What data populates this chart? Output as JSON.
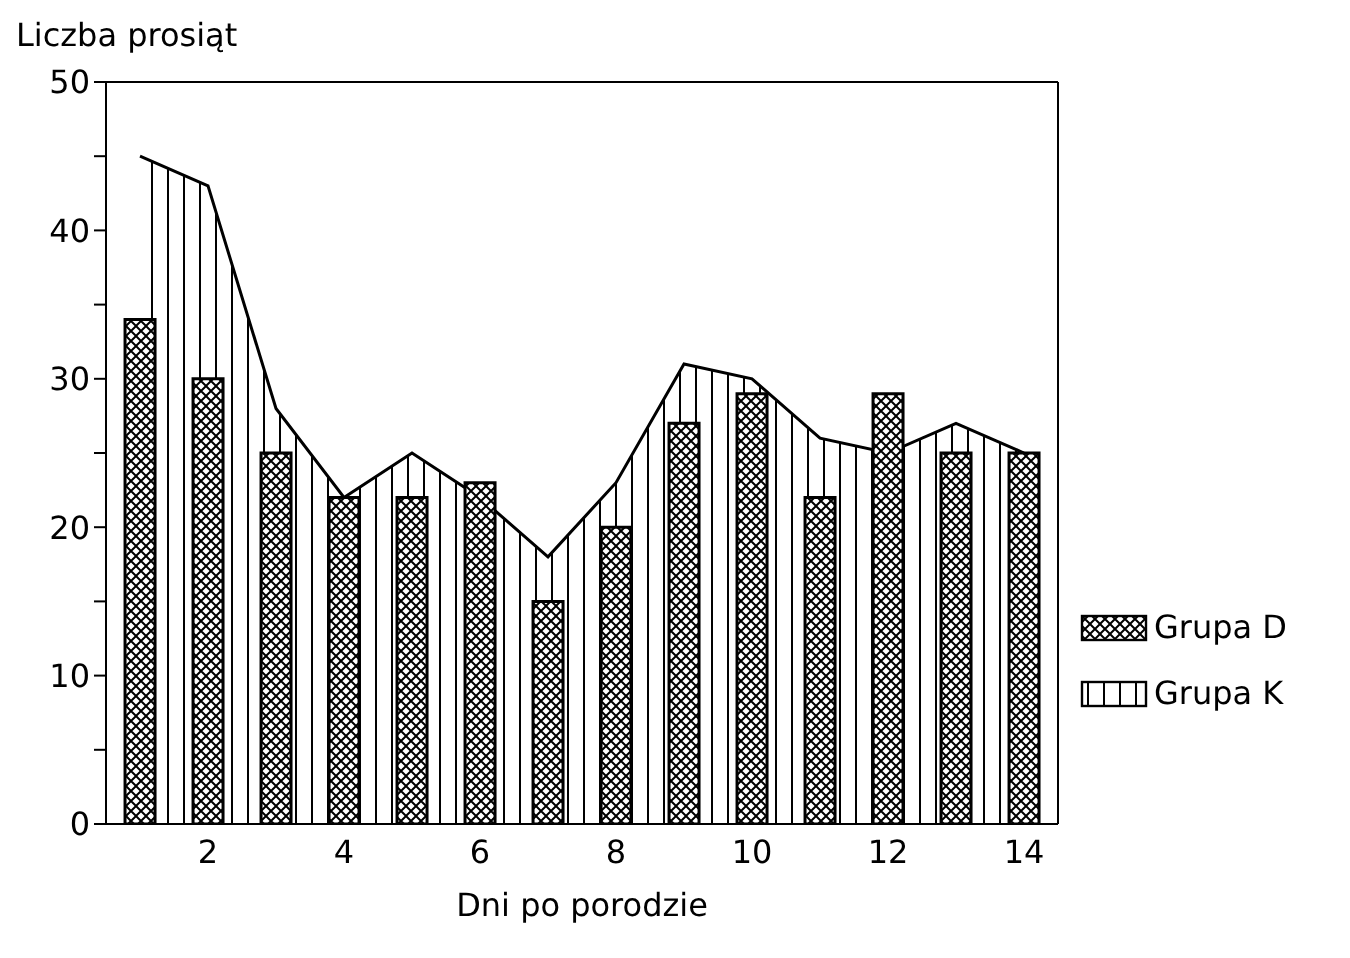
{
  "chart_data": {
    "type": "bar",
    "xlabel": "Dni po porodzie",
    "ylabel": "Liczba prosiąt",
    "categories": [
      null,
      "2",
      null,
      "4",
      null,
      "6",
      null,
      "8",
      null,
      "10",
      null,
      "12",
      null,
      "14"
    ],
    "series": [
      {
        "name": "Grupa K",
        "type": "area",
        "color": "#000000",
        "values": [
          45,
          43,
          28,
          22,
          25,
          22,
          18,
          23,
          31,
          30,
          26,
          25,
          27,
          25
        ]
      },
      {
        "name": "Grupa D",
        "color": "#000000",
        "values": [
          34,
          30,
          25,
          22,
          22,
          23,
          15,
          20,
          27,
          29,
          22,
          29,
          25,
          25
        ]
      }
    ],
    "ylim": [
      0,
      50
    ],
    "yticks": [
      0,
      {
        "value": 5,
        "label": null
      },
      10,
      {
        "value": 15,
        "label": null
      },
      20,
      {
        "value": 25,
        "label": null
      },
      30,
      {
        "value": 35,
        "label": null
      },
      40,
      {
        "value": 45,
        "label": null
      },
      50
    ],
    "legend": "bottom right",
    "grid": false
  }
}
